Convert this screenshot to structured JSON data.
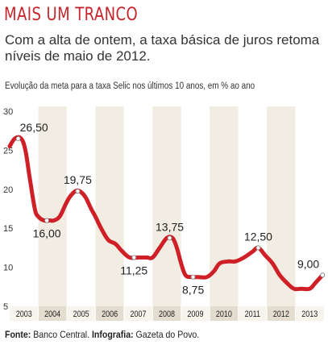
{
  "header": {
    "title": "MAIS UM TRANCO",
    "subtitle": "Com a alta de ontem, a taxa básica de juros retoma níveis de maio de 2012.",
    "caption": "Evolução da meta para a taxa Selic nos últimos 10 anos, em % ao ano"
  },
  "footer": {
    "source_label": "Fonte:",
    "source_value": " Banco Central. ",
    "infographic_label": "Infografia:",
    "infographic_value": " Gazeta do Povo."
  },
  "colors": {
    "line": "#cf2027",
    "band_shaded": "#f1ede3",
    "band_plain": "#ffffff",
    "axis_bar_shaded": "#e3ddcf",
    "axis_bar_plain": "#f7f4ed",
    "title": "#c7242c"
  },
  "chart_data": {
    "type": "line",
    "y_ticks": [
      5,
      10,
      15,
      20,
      25,
      30
    ],
    "ylim": [
      5,
      30
    ],
    "xlim": [
      2003,
      2014
    ],
    "x_ticks": [
      "2003",
      "2004",
      "2005",
      "2006",
      "2007",
      "2008",
      "2009",
      "2010",
      "2011",
      "2012",
      "2013"
    ],
    "grid": false,
    "series": [
      {
        "x": [
          2003.0,
          2003.18,
          2003.4,
          2003.55,
          2003.7,
          2003.88,
          2004.0,
          2004.2,
          2004.4,
          2004.55,
          2004.75,
          2004.95,
          2005.1,
          2005.3,
          2005.45,
          2005.65,
          2005.85,
          2006.0,
          2006.2,
          2006.45,
          2006.7,
          2006.95,
          2007.2,
          2007.5,
          2007.8,
          2008.0,
          2008.25,
          2008.5,
          2008.7,
          2008.85,
          2009.0,
          2009.15,
          2009.35,
          2009.6,
          2009.9,
          2010.15,
          2010.35,
          2010.65,
          2010.9,
          2011.2,
          2011.5,
          2011.7,
          2011.95,
          2012.2,
          2012.45,
          2012.7,
          2012.95,
          2013.2,
          2013.5,
          2013.7,
          2013.95
        ],
        "y": [
          25.5,
          26.5,
          26.5,
          25.0,
          21.5,
          17.5,
          16.5,
          16.0,
          16.0,
          16.0,
          16.5,
          18.0,
          19.0,
          19.75,
          19.75,
          19.0,
          17.5,
          16.5,
          15.0,
          13.5,
          13.0,
          12.0,
          11.25,
          11.25,
          11.25,
          11.25,
          12.5,
          13.75,
          13.75,
          12.5,
          10.5,
          9.0,
          8.75,
          8.75,
          8.75,
          9.5,
          10.5,
          10.75,
          10.75,
          11.25,
          12.0,
          12.5,
          11.5,
          10.5,
          9.0,
          8.0,
          7.25,
          7.25,
          7.25,
          8.0,
          9.0
        ]
      }
    ],
    "data_labels": [
      {
        "text": "26,50",
        "x": 2003.3,
        "y": 26.5,
        "pos": "above"
      },
      {
        "text": "16,00",
        "x": 2004.3,
        "y": 16.0,
        "pos": "below"
      },
      {
        "text": "19,75",
        "x": 2005.38,
        "y": 19.75,
        "pos": "above"
      },
      {
        "text": "11,25",
        "x": 2007.35,
        "y": 11.25,
        "pos": "below"
      },
      {
        "text": "13,75",
        "x": 2008.6,
        "y": 13.75,
        "pos": "above"
      },
      {
        "text": "8,75",
        "x": 2009.42,
        "y": 8.75,
        "pos": "below"
      },
      {
        "text": "12,50",
        "x": 2011.7,
        "y": 12.5,
        "pos": "above"
      },
      {
        "text": "9,00",
        "x": 2013.95,
        "y": 9.0,
        "pos": "above-left"
      }
    ]
  }
}
